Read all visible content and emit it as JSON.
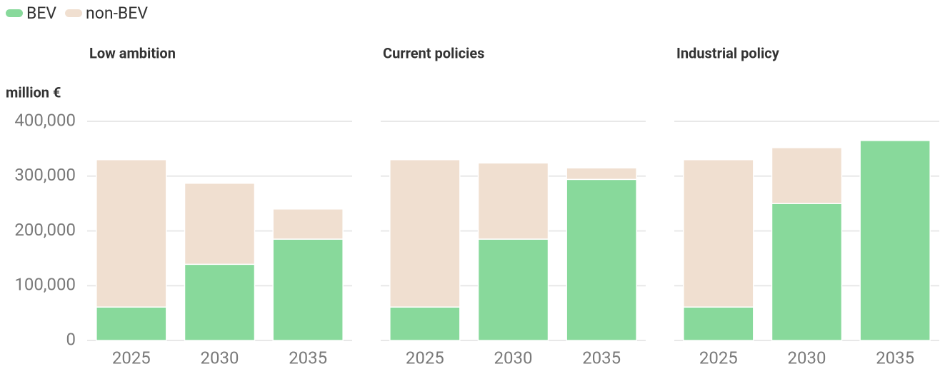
{
  "chart_data": {
    "type": "bar",
    "stacked": true,
    "y_label": "million €",
    "ylim": [
      0,
      400000
    ],
    "yticks": [
      0,
      {
        "value": 100000,
        "label": "100,000"
      },
      {
        "value": 200000,
        "label": "200,000"
      },
      {
        "value": 300000,
        "label": "300,000"
      },
      {
        "value": 400000,
        "label": "400,000"
      }
    ],
    "grid": true,
    "series": [
      {
        "name": "BEV",
        "color": "#88d99b"
      },
      {
        "name": "non-BEV",
        "color": "#f0dfd0"
      }
    ],
    "panels": [
      {
        "title": "Low ambition",
        "categories": [
          "2025",
          "2030",
          "2035"
        ],
        "series": [
          {
            "values": [
              61000,
              139000,
              185000
            ]
          },
          {
            "values": [
              269000,
              148000,
              55000
            ]
          }
        ]
      },
      {
        "title": "Current policies",
        "categories": [
          "2025",
          "2030",
          "2035"
        ],
        "series": [
          {
            "values": [
              61000,
              185000,
              294000
            ]
          },
          {
            "values": [
              269000,
              139000,
              21000
            ]
          }
        ]
      },
      {
        "title": "Industrial policy",
        "categories": [
          "2025",
          "2030",
          "2035"
        ],
        "series": [
          {
            "values": [
              61000,
              250000,
              365000
            ]
          },
          {
            "values": [
              269000,
              102000,
              0
            ]
          }
        ]
      }
    ]
  }
}
